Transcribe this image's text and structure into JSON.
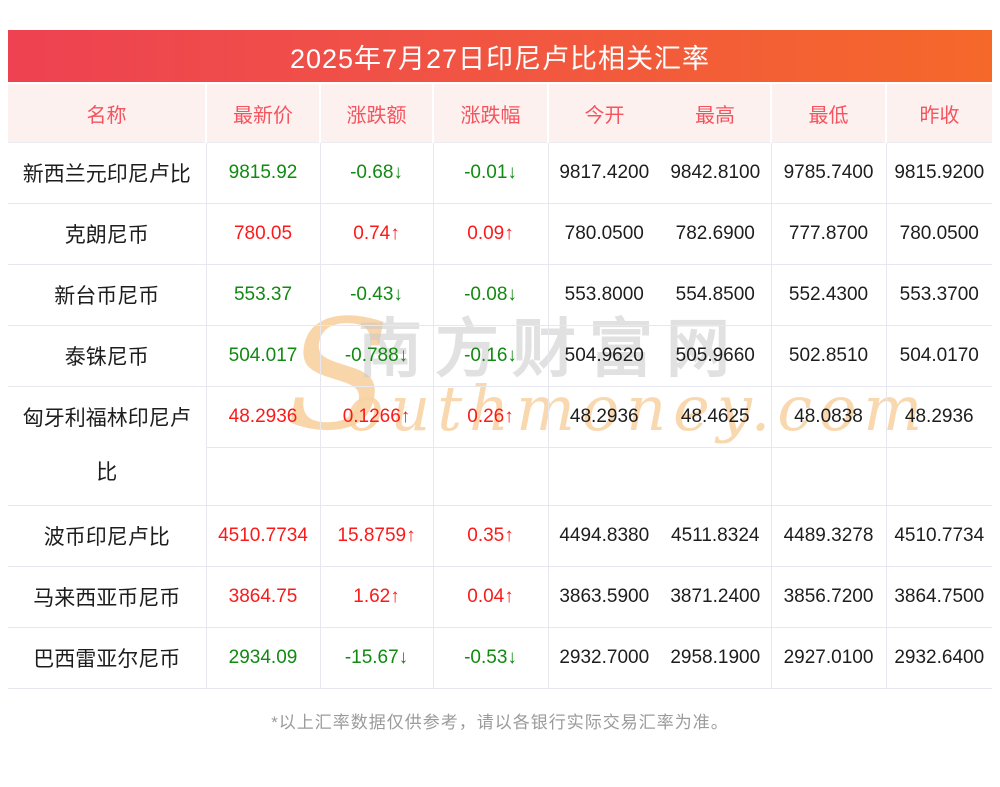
{
  "page": {
    "title": "2025年7月27日印尼卢比相关汇率",
    "footer_note": "*以上汇率数据仅供参考，请以各银行实际交易汇率为准。"
  },
  "watermark": {
    "initial": "S",
    "script": "outhmoney.com",
    "cn": "南方财富网"
  },
  "colors": {
    "up": "#fb1a1a",
    "down": "#118a11",
    "title_gradient_left": "#ee4151",
    "title_gradient_right": "#f5682a",
    "header_bg": "#fdf1f0",
    "header_text": "#f5545e",
    "grid_line": "#e7e7f0"
  },
  "chart_data": {
    "type": "table",
    "title": "2025年7月27日印尼卢比相关汇率",
    "columns": [
      "名称",
      "最新价",
      "涨跌额",
      "涨跌幅",
      "今开",
      "最高",
      "最低",
      "昨收"
    ],
    "rows": [
      {
        "name": "新西兰元印尼卢比",
        "latest": "9815.92",
        "change": "-0.68↓",
        "change_pct": "-0.01↓",
        "open": "9817.4200",
        "high": "9842.8100",
        "low": "9785.7400",
        "prev_close": "9815.9200",
        "trend": "down"
      },
      {
        "name": "克朗尼币",
        "latest": "780.05",
        "change": "0.74↑",
        "change_pct": "0.09↑",
        "open": "780.0500",
        "high": "782.6900",
        "low": "777.8700",
        "prev_close": "780.0500",
        "trend": "up"
      },
      {
        "name": "新台币尼币",
        "latest": "553.37",
        "change": "-0.43↓",
        "change_pct": "-0.08↓",
        "open": "553.8000",
        "high": "554.8500",
        "low": "552.4300",
        "prev_close": "553.3700",
        "trend": "down"
      },
      {
        "name": "泰铢尼币",
        "latest": "504.017",
        "change": "-0.788↓",
        "change_pct": "-0.16↓",
        "open": "504.9620",
        "high": "505.9660",
        "low": "502.8510",
        "prev_close": "504.0170",
        "trend": "down"
      },
      {
        "name": "匈牙利福林印尼卢比",
        "latest": "48.2936",
        "change": "0.1266↑",
        "change_pct": "0.26↑",
        "open": "48.2936",
        "high": "48.4625",
        "low": "48.0838",
        "prev_close": "48.2936",
        "trend": "up",
        "tall": true
      },
      {
        "name": "波币印尼卢比",
        "latest": "4510.7734",
        "change": "15.8759↑",
        "change_pct": "0.35↑",
        "open": "4494.8380",
        "high": "4511.8324",
        "low": "4489.3278",
        "prev_close": "4510.7734",
        "trend": "up"
      },
      {
        "name": "马来西亚币尼币",
        "latest": "3864.75",
        "change": "1.62↑",
        "change_pct": "0.04↑",
        "open": "3863.5900",
        "high": "3871.2400",
        "low": "3856.7200",
        "prev_close": "3864.7500",
        "trend": "up"
      },
      {
        "name": "巴西雷亚尔尼币",
        "latest": "2934.09",
        "change": "-15.67↓",
        "change_pct": "-0.53↓",
        "open": "2932.7000",
        "high": "2958.1900",
        "low": "2927.0100",
        "prev_close": "2932.6400",
        "trend": "down"
      }
    ]
  }
}
